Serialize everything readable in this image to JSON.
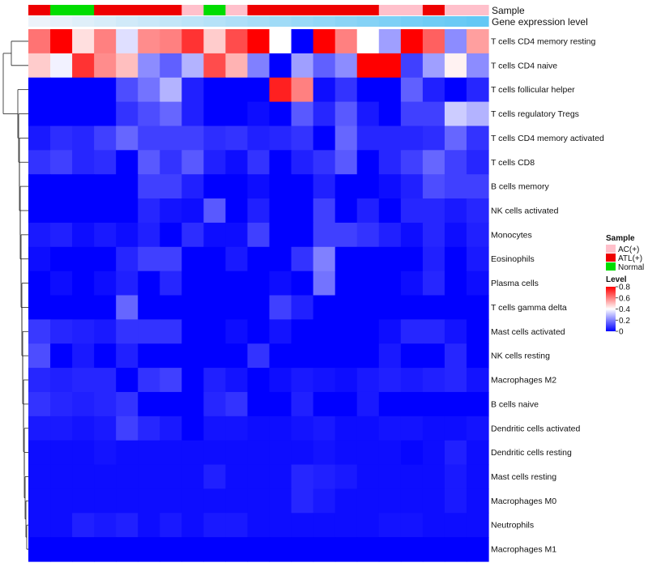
{
  "chart_data": {
    "type": "heatmap",
    "row_labels": [
      "T cells CD4 memory resting",
      "T cells CD4 naive",
      "T cells follicular helper",
      "T cells regulatory  Tregs",
      "T cells CD4 memory activated",
      "T cells CD8",
      "B cells memory",
      "NK cells activated",
      "Monocytes",
      "Eosinophils",
      "Plasma cells",
      "T cells gamma delta",
      "Mast cells activated",
      "NK cells resting",
      "Macrophages M2",
      "B cells naive",
      "Dendritic cells activated",
      "Dendritic cells resting",
      "Mast cells resting",
      "Macrophages M0",
      "Neutrophils",
      "Macrophages M1"
    ],
    "sample_annotation": {
      "label": "Sample",
      "groups": [
        "ATL(+)",
        "Normal",
        "Normal",
        "ATL(+)",
        "ATL(+)",
        "ATL(+)",
        "ATL(+)",
        "AC(+)",
        "Normal",
        "AC(+)",
        "ATL(+)",
        "ATL(+)",
        "ATL(+)",
        "ATL(+)",
        "ATL(+)",
        "ATL(+)",
        "AC(+)",
        "AC(+)",
        "ATL(+)",
        "AC(+)",
        "AC(+)"
      ]
    },
    "expression_track": {
      "label": "Gene expression level",
      "values": [
        0.02,
        0.07,
        0.12,
        0.17,
        0.22,
        0.27,
        0.32,
        0.37,
        0.42,
        0.47,
        0.52,
        0.57,
        0.62,
        0.67,
        0.72,
        0.77,
        0.82,
        0.87,
        0.92,
        0.96,
        1.0
      ]
    },
    "values": [
      [
        0.62,
        0.8,
        0.45,
        0.6,
        0.35,
        0.58,
        0.6,
        0.72,
        0.48,
        0.68,
        0.8,
        0.4,
        0.0,
        0.8,
        0.6,
        0.4,
        0.25,
        0.8,
        0.65,
        0.22,
        0.55
      ],
      [
        0.48,
        0.38,
        0.72,
        0.58,
        0.5,
        0.22,
        0.15,
        0.28,
        0.68,
        0.52,
        0.2,
        0.0,
        0.25,
        0.15,
        0.22,
        0.8,
        0.8,
        0.1,
        0.25,
        0.42,
        0.22
      ],
      [
        0.0,
        0.0,
        0.0,
        0.0,
        0.12,
        0.18,
        0.28,
        0.05,
        0.0,
        0.0,
        0.0,
        0.75,
        0.6,
        0.02,
        0.08,
        0.0,
        0.0,
        0.15,
        0.05,
        0.0,
        0.06
      ],
      [
        0.0,
        0.0,
        0.0,
        0.0,
        0.08,
        0.12,
        0.16,
        0.05,
        0.0,
        0.0,
        0.02,
        0.0,
        0.14,
        0.06,
        0.14,
        0.04,
        0.0,
        0.1,
        0.1,
        0.32,
        0.28
      ],
      [
        0.04,
        0.07,
        0.06,
        0.1,
        0.16,
        0.1,
        0.1,
        0.1,
        0.07,
        0.08,
        0.05,
        0.06,
        0.08,
        0.0,
        0.16,
        0.06,
        0.06,
        0.06,
        0.07,
        0.16,
        0.08
      ],
      [
        0.08,
        0.1,
        0.06,
        0.07,
        0.0,
        0.14,
        0.08,
        0.14,
        0.05,
        0.02,
        0.08,
        0.0,
        0.05,
        0.08,
        0.14,
        0.0,
        0.06,
        0.1,
        0.16,
        0.1,
        0.06
      ],
      [
        0.0,
        0.0,
        0.0,
        0.0,
        0.0,
        0.1,
        0.1,
        0.05,
        0.0,
        0.0,
        0.02,
        0.0,
        0.0,
        0.05,
        0.0,
        0.0,
        0.02,
        0.05,
        0.12,
        0.1,
        0.1
      ],
      [
        0.0,
        0.0,
        0.0,
        0.0,
        0.0,
        0.06,
        0.03,
        0.02,
        0.14,
        0.0,
        0.05,
        0.0,
        0.0,
        0.1,
        0.0,
        0.05,
        0.0,
        0.06,
        0.06,
        0.04,
        0.06
      ],
      [
        0.04,
        0.05,
        0.02,
        0.04,
        0.02,
        0.05,
        0.0,
        0.07,
        0.02,
        0.02,
        0.1,
        0.0,
        0.0,
        0.1,
        0.1,
        0.08,
        0.05,
        0.02,
        0.06,
        0.02,
        0.05
      ],
      [
        0.02,
        0.0,
        0.0,
        0.0,
        0.06,
        0.1,
        0.1,
        0.0,
        0.0,
        0.04,
        0.0,
        0.0,
        0.08,
        0.2,
        0.0,
        0.0,
        0.0,
        0.0,
        0.05,
        0.0,
        0.04
      ],
      [
        0.0,
        0.02,
        0.0,
        0.02,
        0.05,
        0.0,
        0.06,
        0.0,
        0.0,
        0.0,
        0.0,
        0.02,
        0.0,
        0.18,
        0.0,
        0.0,
        0.0,
        0.02,
        0.06,
        0.0,
        0.02
      ],
      [
        0.0,
        0.0,
        0.0,
        0.0,
        0.16,
        0.0,
        0.0,
        0.0,
        0.0,
        0.0,
        0.0,
        0.1,
        0.05,
        0.0,
        0.0,
        0.0,
        0.0,
        0.0,
        0.0,
        0.0,
        0.0
      ],
      [
        0.09,
        0.06,
        0.05,
        0.04,
        0.08,
        0.08,
        0.08,
        0.0,
        0.0,
        0.02,
        0.0,
        0.03,
        0.0,
        0.0,
        0.0,
        0.0,
        0.02,
        0.06,
        0.06,
        0.03,
        0.0
      ],
      [
        0.12,
        0.0,
        0.04,
        0.0,
        0.05,
        0.0,
        0.0,
        0.0,
        0.0,
        0.0,
        0.08,
        0.0,
        0.0,
        0.0,
        0.0,
        0.0,
        0.04,
        0.0,
        0.0,
        0.06,
        0.0
      ],
      [
        0.06,
        0.05,
        0.06,
        0.06,
        0.0,
        0.08,
        0.1,
        0.0,
        0.05,
        0.03,
        0.0,
        0.02,
        0.04,
        0.03,
        0.02,
        0.04,
        0.05,
        0.04,
        0.05,
        0.06,
        0.03
      ],
      [
        0.08,
        0.06,
        0.05,
        0.06,
        0.08,
        0.0,
        0.0,
        0.0,
        0.06,
        0.08,
        0.0,
        0.0,
        0.05,
        0.0,
        0.0,
        0.04,
        0.0,
        0.0,
        0.0,
        0.0,
        0.0
      ],
      [
        0.04,
        0.04,
        0.03,
        0.04,
        0.1,
        0.06,
        0.04,
        0.0,
        0.03,
        0.03,
        0.02,
        0.02,
        0.03,
        0.04,
        0.02,
        0.02,
        0.03,
        0.03,
        0.02,
        0.02,
        0.03
      ],
      [
        0.02,
        0.02,
        0.02,
        0.03,
        0.02,
        0.02,
        0.02,
        0.02,
        0.02,
        0.02,
        0.02,
        0.02,
        0.02,
        0.03,
        0.02,
        0.02,
        0.02,
        0.01,
        0.02,
        0.05,
        0.02
      ],
      [
        0.02,
        0.02,
        0.02,
        0.02,
        0.02,
        0.02,
        0.02,
        0.02,
        0.05,
        0.02,
        0.02,
        0.02,
        0.06,
        0.05,
        0.04,
        0.02,
        0.02,
        0.02,
        0.02,
        0.04,
        0.02
      ],
      [
        0.02,
        0.02,
        0.02,
        0.02,
        0.02,
        0.02,
        0.02,
        0.02,
        0.02,
        0.02,
        0.02,
        0.02,
        0.06,
        0.04,
        0.02,
        0.02,
        0.02,
        0.02,
        0.02,
        0.04,
        0.02
      ],
      [
        0.02,
        0.02,
        0.05,
        0.04,
        0.05,
        0.02,
        0.04,
        0.02,
        0.04,
        0.04,
        0.02,
        0.02,
        0.02,
        0.02,
        0.02,
        0.02,
        0.03,
        0.03,
        0.02,
        0.02,
        0.02
      ],
      [
        0.0,
        0.0,
        0.0,
        0.0,
        0.0,
        0.0,
        0.0,
        0.0,
        0.0,
        0.0,
        0.0,
        0.0,
        0.0,
        0.0,
        0.0,
        0.0,
        0.0,
        0.0,
        0.0,
        0.0,
        0.0
      ]
    ],
    "dendrogram": "row clustering tree on left side",
    "legend_sample": {
      "title": "Sample",
      "entries": [
        {
          "name": "AC(+)",
          "color": "#ffc0cb"
        },
        {
          "name": "ATL(+)",
          "color": "#ee0000"
        },
        {
          "name": "Normal",
          "color": "#00dd00"
        }
      ]
    },
    "legend_level": {
      "title": "Level",
      "ticks": [
        "0.8",
        "0.6",
        "0.4",
        "0.2",
        "0"
      ],
      "tick_values": [
        0.8,
        0.6,
        0.4,
        0.2,
        0.0
      ],
      "range": [
        0,
        0.8
      ]
    },
    "color_scale": {
      "low": "#0000ff",
      "mid": "#ffffff",
      "high": "#ff0000",
      "mid_value": 0.4
    }
  }
}
